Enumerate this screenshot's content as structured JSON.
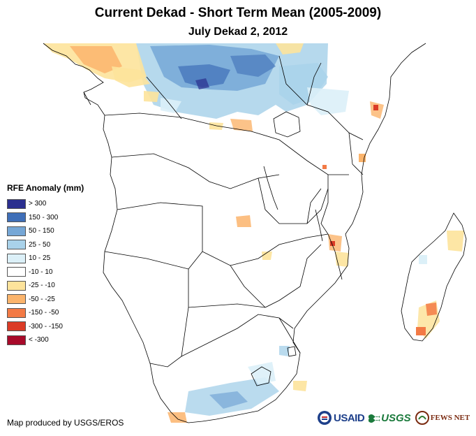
{
  "title": "Current Dekad - Short Term Mean (2005-2009)",
  "subtitle": "July Dekad 2, 2012",
  "legend": {
    "title": "RFE Anomaly (mm)",
    "items": [
      {
        "label": "> 300",
        "color": "#2b2f8f"
      },
      {
        "label": "150 - 300",
        "color": "#3f6fb8"
      },
      {
        "label": "50 - 150",
        "color": "#76a7d6"
      },
      {
        "label": "25 - 50",
        "color": "#a9d2ea"
      },
      {
        "label": "10 - 25",
        "color": "#dcf0f8"
      },
      {
        "label": "-10 - 10",
        "color": "#ffffff"
      },
      {
        "label": "-25 - -10",
        "color": "#fde39b"
      },
      {
        "label": "-50 - -25",
        "color": "#fbb46c"
      },
      {
        "label": "-150 - -50",
        "color": "#f37a45"
      },
      {
        "label": "-300 - -150",
        "color": "#db3b26"
      },
      {
        "label": "< -300",
        "color": "#a80a2a"
      }
    ]
  },
  "credit": "Map produced by USGS/EROS",
  "logos": {
    "usaid": "USAID",
    "usgs": "USGS",
    "fews": "FEWS NET"
  }
}
